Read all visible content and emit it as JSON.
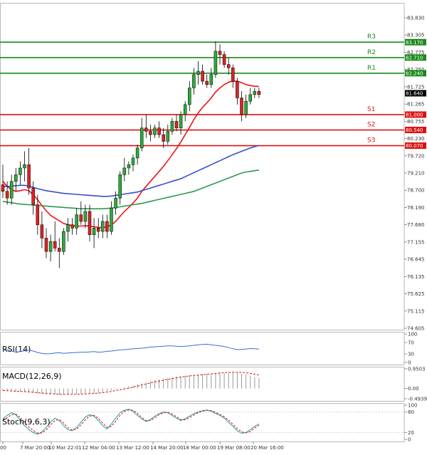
{
  "chart_data": [
    {
      "type": "candlestick",
      "name": "main",
      "ylim": [
        74.6,
        83.9
      ],
      "y_ticks": [
        "83.830",
        "83.305",
        "82.775",
        "82.250",
        "81.725",
        "81.265",
        "80.755",
        "80.230",
        "79.720",
        "79.210",
        "78.700",
        "78.190",
        "77.680",
        "77.155",
        "76.645",
        "76.135",
        "75.625",
        "75.115",
        "74.605"
      ],
      "levels": [
        {
          "label": "R3",
          "value": 83.17,
          "value_label": "83.170",
          "color": "#1a8a1a"
        },
        {
          "label": "R2",
          "value": 82.71,
          "value_label": "82.710",
          "color": "#1a8a1a"
        },
        {
          "label": "R1",
          "value": 82.24,
          "value_label": "82.240",
          "color": "#1a8a1a"
        },
        {
          "label": "S1",
          "value": 81.0,
          "value_label": "81.000",
          "color": "#dd1111"
        },
        {
          "label": "S2",
          "value": 80.54,
          "value_label": "80.540",
          "color": "#dd1111"
        },
        {
          "label": "S3",
          "value": 80.07,
          "value_label": "80.070",
          "color": "#dd1111"
        }
      ],
      "current_price": {
        "value": 81.64,
        "label": "81.640"
      },
      "candles": [
        {
          "o": 78.9,
          "h": 79.5,
          "l": 78.5,
          "c": 78.7
        },
        {
          "o": 78.7,
          "h": 79.0,
          "l": 78.3,
          "c": 78.5
        },
        {
          "o": 78.5,
          "h": 79.2,
          "l": 78.3,
          "c": 79.0
        },
        {
          "o": 79.0,
          "h": 79.4,
          "l": 78.7,
          "c": 79.2
        },
        {
          "o": 79.2,
          "h": 79.6,
          "l": 78.9,
          "c": 79.4
        },
        {
          "o": 79.4,
          "h": 79.9,
          "l": 79.0,
          "c": 79.5
        },
        {
          "o": 79.5,
          "h": 80.0,
          "l": 78.6,
          "c": 78.8
        },
        {
          "o": 78.8,
          "h": 79.0,
          "l": 78.0,
          "c": 78.3
        },
        {
          "o": 78.3,
          "h": 78.6,
          "l": 77.4,
          "c": 77.7
        },
        {
          "o": 77.7,
          "h": 78.1,
          "l": 77.0,
          "c": 77.3
        },
        {
          "o": 77.3,
          "h": 77.6,
          "l": 76.7,
          "c": 76.9
        },
        {
          "o": 76.9,
          "h": 77.4,
          "l": 76.6,
          "c": 77.2
        },
        {
          "o": 77.2,
          "h": 77.8,
          "l": 76.9,
          "c": 77.0
        },
        {
          "o": 77.0,
          "h": 77.3,
          "l": 76.4,
          "c": 76.9
        },
        {
          "o": 76.9,
          "h": 77.6,
          "l": 76.8,
          "c": 77.5
        },
        {
          "o": 77.5,
          "h": 77.9,
          "l": 77.2,
          "c": 77.7
        },
        {
          "o": 77.7,
          "h": 77.9,
          "l": 77.4,
          "c": 77.6
        },
        {
          "o": 77.6,
          "h": 78.2,
          "l": 77.4,
          "c": 78.0
        },
        {
          "o": 78.0,
          "h": 78.4,
          "l": 77.7,
          "c": 77.8
        },
        {
          "o": 77.8,
          "h": 78.3,
          "l": 77.6,
          "c": 78.1
        },
        {
          "o": 78.1,
          "h": 78.3,
          "l": 77.2,
          "c": 77.4
        },
        {
          "o": 77.4,
          "h": 77.9,
          "l": 77.0,
          "c": 77.6
        },
        {
          "o": 77.6,
          "h": 77.9,
          "l": 77.3,
          "c": 77.5
        },
        {
          "o": 77.5,
          "h": 78.0,
          "l": 77.3,
          "c": 77.8
        },
        {
          "o": 77.8,
          "h": 78.0,
          "l": 77.3,
          "c": 77.5
        },
        {
          "o": 77.5,
          "h": 78.4,
          "l": 77.4,
          "c": 78.2
        },
        {
          "o": 78.2,
          "h": 78.7,
          "l": 78.0,
          "c": 78.5
        },
        {
          "o": 78.5,
          "h": 79.3,
          "l": 78.3,
          "c": 79.2
        },
        {
          "o": 79.2,
          "h": 79.7,
          "l": 79.0,
          "c": 79.4
        },
        {
          "o": 79.4,
          "h": 79.6,
          "l": 79.2,
          "c": 79.5
        },
        {
          "o": 79.5,
          "h": 79.8,
          "l": 79.3,
          "c": 79.7
        },
        {
          "o": 79.7,
          "h": 80.1,
          "l": 79.5,
          "c": 80.0
        },
        {
          "o": 80.0,
          "h": 80.9,
          "l": 79.9,
          "c": 80.6
        },
        {
          "o": 80.6,
          "h": 81.0,
          "l": 80.3,
          "c": 80.5
        },
        {
          "o": 80.5,
          "h": 80.7,
          "l": 80.2,
          "c": 80.4
        },
        {
          "o": 80.4,
          "h": 80.7,
          "l": 80.3,
          "c": 80.6
        },
        {
          "o": 80.6,
          "h": 80.8,
          "l": 80.3,
          "c": 80.4
        },
        {
          "o": 80.4,
          "h": 80.6,
          "l": 80.0,
          "c": 80.2
        },
        {
          "o": 80.2,
          "h": 80.7,
          "l": 80.1,
          "c": 80.5
        },
        {
          "o": 80.5,
          "h": 80.9,
          "l": 80.4,
          "c": 80.8
        },
        {
          "o": 80.8,
          "h": 81.0,
          "l": 80.5,
          "c": 80.6
        },
        {
          "o": 80.6,
          "h": 81.1,
          "l": 80.4,
          "c": 81.0
        },
        {
          "o": 81.0,
          "h": 81.4,
          "l": 80.8,
          "c": 81.3
        },
        {
          "o": 81.3,
          "h": 82.0,
          "l": 81.1,
          "c": 81.8
        },
        {
          "o": 81.8,
          "h": 82.4,
          "l": 81.6,
          "c": 82.2
        },
        {
          "o": 82.2,
          "h": 82.6,
          "l": 81.9,
          "c": 82.3
        },
        {
          "o": 82.3,
          "h": 82.5,
          "l": 81.9,
          "c": 82.0
        },
        {
          "o": 82.0,
          "h": 82.2,
          "l": 81.8,
          "c": 81.9
        },
        {
          "o": 81.9,
          "h": 82.4,
          "l": 81.8,
          "c": 82.2
        },
        {
          "o": 82.2,
          "h": 83.2,
          "l": 82.1,
          "c": 82.9
        },
        {
          "o": 82.9,
          "h": 83.1,
          "l": 82.5,
          "c": 82.8
        },
        {
          "o": 82.8,
          "h": 82.9,
          "l": 82.4,
          "c": 82.5
        },
        {
          "o": 82.5,
          "h": 82.7,
          "l": 82.2,
          "c": 82.4
        },
        {
          "o": 82.4,
          "h": 82.5,
          "l": 81.8,
          "c": 82.0
        },
        {
          "o": 82.0,
          "h": 82.1,
          "l": 81.3,
          "c": 81.5
        },
        {
          "o": 81.5,
          "h": 81.7,
          "l": 80.8,
          "c": 81.0
        },
        {
          "o": 81.0,
          "h": 81.6,
          "l": 80.9,
          "c": 81.4
        },
        {
          "o": 81.4,
          "h": 81.8,
          "l": 81.3,
          "c": 81.6
        },
        {
          "o": 81.6,
          "h": 81.8,
          "l": 81.5,
          "c": 81.7
        },
        {
          "o": 81.7,
          "h": 81.8,
          "l": 81.5,
          "c": 81.6
        }
      ],
      "moving_averages": [
        {
          "color": "#ee1111",
          "values": [
            79.0,
            78.85,
            78.75,
            78.7,
            78.72,
            78.75,
            78.72,
            78.6,
            78.45,
            78.28,
            78.12,
            77.98,
            77.9,
            77.82,
            77.74,
            77.7,
            77.68,
            77.66,
            77.66,
            77.67,
            77.66,
            77.64,
            77.62,
            77.62,
            77.64,
            77.7,
            77.8,
            77.95,
            78.1,
            78.22,
            78.35,
            78.5,
            78.7,
            78.85,
            79.0,
            79.15,
            79.3,
            79.45,
            79.62,
            79.8,
            79.98,
            80.18,
            80.4,
            80.62,
            80.85,
            81.05,
            81.22,
            81.35,
            81.5,
            81.68,
            81.8,
            81.9,
            81.97,
            82.0,
            82.0,
            81.96,
            81.9,
            81.87,
            81.85,
            81.84
          ]
        },
        {
          "color": "#3a4fcc",
          "values": [
            78.85,
            78.85,
            78.86,
            78.87,
            78.88,
            78.88,
            78.86,
            78.82,
            78.78,
            78.75,
            78.72,
            78.7,
            78.68,
            78.66,
            78.64,
            78.63,
            78.62,
            78.61,
            78.6,
            78.59,
            78.58,
            78.57,
            78.56,
            78.55,
            78.55,
            78.56,
            78.58,
            78.6,
            78.62,
            78.64,
            78.66,
            78.68,
            78.72,
            78.76,
            78.8,
            78.84,
            78.88,
            78.92,
            78.96,
            79.0,
            79.04,
            79.08,
            79.14,
            79.2,
            79.26,
            79.32,
            79.38,
            79.44,
            79.5,
            79.56,
            79.62,
            79.68,
            79.74,
            79.8,
            79.85,
            79.9,
            79.95,
            80.0,
            80.04,
            80.08
          ]
        },
        {
          "color": "#2e9a4e",
          "values": [
            78.4,
            78.38,
            78.36,
            78.34,
            78.32,
            78.31,
            78.3,
            78.29,
            78.28,
            78.27,
            78.26,
            78.25,
            78.24,
            78.23,
            78.22,
            78.21,
            78.2,
            78.19,
            78.18,
            78.18,
            78.18,
            78.18,
            78.18,
            78.18,
            78.19,
            78.2,
            78.22,
            78.24,
            78.26,
            78.28,
            78.3,
            78.32,
            78.34,
            78.37,
            78.4,
            78.43,
            78.46,
            78.49,
            78.52,
            78.55,
            78.58,
            78.61,
            78.64,
            78.67,
            78.7,
            78.75,
            78.8,
            78.85,
            78.9,
            78.95,
            79.0,
            79.05,
            79.1,
            79.15,
            79.2,
            79.25,
            79.28,
            79.3,
            79.32,
            79.34
          ]
        }
      ],
      "x_labels": [
        "00",
        "7 Mar 20:00",
        "10 Mar 22:01",
        "12 Mar 04:00",
        "13 Mar 12:00",
        "14 Mar 20:00",
        "18 Mar 00:00",
        "19 Mar 08:00",
        "20 Mar 16:00"
      ]
    },
    {
      "type": "line",
      "name": "RSI(14)",
      "title": "RSI(14)",
      "ylim": [
        0,
        100
      ],
      "y_ticks": [
        "100",
        "70",
        "30",
        "0"
      ],
      "series": [
        {
          "color": "#3a6fd0",
          "values": [
            42,
            44,
            40,
            36,
            38,
            41,
            43,
            40,
            35,
            32,
            30,
            31,
            33,
            34,
            32,
            33,
            34,
            35,
            36,
            36,
            37,
            38,
            36,
            37,
            39,
            40,
            42,
            44,
            45,
            46,
            48,
            49,
            50,
            52,
            54,
            55,
            56,
            57,
            58,
            58,
            57,
            56,
            57,
            58,
            60,
            62,
            63,
            64,
            62,
            60,
            58,
            56,
            52,
            48,
            45,
            46,
            47,
            49,
            48,
            47
          ]
        }
      ]
    },
    {
      "type": "bar",
      "name": "MACD(12,26,9)",
      "title": "MACD(12,26,9)",
      "ylim": [
        -0.4939,
        0.9503
      ],
      "y_ticks": [
        "0.9503",
        "0.00",
        "-0.4939"
      ],
      "histogram": [
        -0.1,
        -0.12,
        -0.13,
        -0.14,
        -0.15,
        -0.17,
        -0.19,
        -0.22,
        -0.25,
        -0.27,
        -0.28,
        -0.29,
        -0.3,
        -0.31,
        -0.3,
        -0.29,
        -0.28,
        -0.27,
        -0.26,
        -0.25,
        -0.24,
        -0.23,
        -0.2,
        -0.17,
        -0.13,
        -0.09,
        -0.04,
        0.01,
        0.05,
        0.1,
        0.15,
        0.2,
        0.25,
        0.3,
        0.35,
        0.4,
        0.44,
        0.48,
        0.52,
        0.55,
        0.58,
        0.6,
        0.62,
        0.64,
        0.66,
        0.68,
        0.7,
        0.71,
        0.72,
        0.73,
        0.74,
        0.75,
        0.76,
        0.76,
        0.75,
        0.72,
        0.68,
        0.62,
        0.55,
        0.5
      ],
      "signal": [
        -0.1,
        -0.11,
        -0.12,
        -0.13,
        -0.14,
        -0.15,
        -0.16,
        -0.18,
        -0.2,
        -0.22,
        -0.24,
        -0.25,
        -0.26,
        -0.27,
        -0.28,
        -0.28,
        -0.28,
        -0.28,
        -0.27,
        -0.26,
        -0.25,
        -0.24,
        -0.22,
        -0.2,
        -0.17,
        -0.14,
        -0.1,
        -0.06,
        -0.02,
        0.02,
        0.07,
        0.12,
        0.17,
        0.22,
        0.27,
        0.32,
        0.36,
        0.4,
        0.44,
        0.48,
        0.52,
        0.55,
        0.58,
        0.61,
        0.63,
        0.65,
        0.67,
        0.69,
        0.71,
        0.73,
        0.75,
        0.77,
        0.78,
        0.79,
        0.79,
        0.78,
        0.76,
        0.73,
        0.69,
        0.65
      ],
      "signal_color": "#dd1111"
    },
    {
      "type": "line",
      "name": "Stoch(9,6,3)",
      "title": "Stoch(9,6,3)",
      "ylim": [
        0,
        100
      ],
      "y_ticks": [
        "100",
        "80",
        "20",
        "0"
      ],
      "series": [
        {
          "color": "#1a9aa8",
          "values": [
            60,
            70,
            78,
            72,
            55,
            40,
            28,
            20,
            15,
            22,
            35,
            50,
            62,
            55,
            40,
            28,
            25,
            35,
            50,
            65,
            72,
            68,
            55,
            40,
            30,
            45,
            62,
            78,
            85,
            88,
            82,
            70,
            60,
            52,
            58,
            68,
            75,
            80,
            78,
            70,
            62,
            55,
            60,
            68,
            75,
            80,
            84,
            86,
            82,
            76,
            70,
            62,
            50,
            38,
            25,
            18,
            20,
            28,
            38,
            45
          ]
        },
        {
          "color": "#dd1111",
          "values": [
            55,
            63,
            72,
            74,
            64,
            50,
            36,
            26,
            18,
            19,
            28,
            42,
            55,
            58,
            48,
            34,
            27,
            30,
            42,
            57,
            68,
            70,
            62,
            48,
            35,
            38,
            53,
            70,
            82,
            86,
            85,
            76,
            64,
            55,
            55,
            63,
            72,
            78,
            79,
            74,
            66,
            58,
            57,
            64,
            71,
            78,
            82,
            85,
            84,
            79,
            73,
            66,
            56,
            44,
            31,
            22,
            19,
            23,
            33,
            41
          ],
          "dash": true
        }
      ]
    }
  ]
}
